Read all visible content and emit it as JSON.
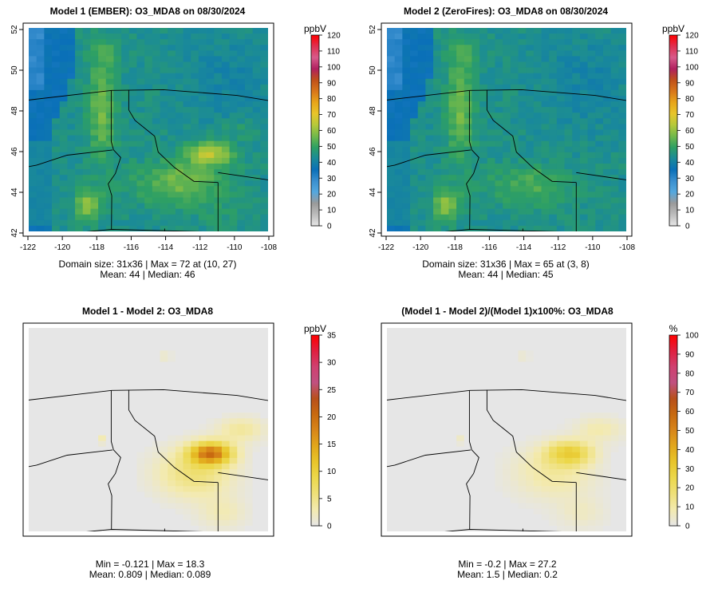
{
  "chart_data": [
    {
      "type": "heatmap",
      "title": "Model 1 (EMBER): O3_MDA8 on 08/30/2024",
      "x_ticks": [
        -122,
        -120,
        -118,
        -116,
        -114,
        -112,
        -110,
        -108
      ],
      "y_ticks": [
        42,
        44,
        46,
        48,
        50,
        52
      ],
      "xlim": [
        -122,
        -108
      ],
      "ylim": [
        42,
        52
      ],
      "grid_size": "31x36",
      "colorbar": {
        "unit": "ppbV",
        "ticks": [
          0,
          10,
          20,
          30,
          40,
          50,
          60,
          70,
          80,
          90,
          100,
          110,
          120
        ],
        "range": [
          0,
          120
        ]
      },
      "stats": [
        "Domain size: 31x36 | Max = 72 at (10, 27)",
        "Mean: 44 |  Median: 46"
      ],
      "max": 72,
      "mean": 44,
      "median": 46
    },
    {
      "type": "heatmap",
      "title": "Model 2 (ZeroFires): O3_MDA8 on 08/30/2024",
      "x_ticks": [
        -122,
        -120,
        -118,
        -116,
        -114,
        -112,
        -110,
        -108
      ],
      "y_ticks": [
        42,
        44,
        46,
        48,
        50,
        52
      ],
      "xlim": [
        -122,
        -108
      ],
      "ylim": [
        42,
        52
      ],
      "grid_size": "31x36",
      "colorbar": {
        "unit": "ppbV",
        "ticks": [
          0,
          10,
          20,
          30,
          40,
          50,
          60,
          70,
          80,
          90,
          100,
          110,
          120
        ],
        "range": [
          0,
          120
        ]
      },
      "stats": [
        "Domain size: 31x36 | Max = 65 at (3, 8)",
        "Mean: 44 |  Median: 45"
      ],
      "max": 65,
      "mean": 44,
      "median": 45
    },
    {
      "type": "heatmap",
      "title": "Model 1 - Model 2: O3_MDA8",
      "colorbar": {
        "unit": "ppbV",
        "ticks": [
          0,
          5,
          10,
          15,
          20,
          25,
          30,
          35
        ],
        "range": [
          0,
          35
        ]
      },
      "stats": [
        "Min = -0.121 | Max = 18.3",
        "Mean: 0.809 |  Median: 0.089"
      ],
      "min": -0.121,
      "max": 18.3,
      "mean": 0.809,
      "median": 0.089
    },
    {
      "type": "heatmap",
      "title": "(Model 1 - Model 2)/(Model 1)x100%: O3_MDA8",
      "colorbar": {
        "unit": "%",
        "ticks": [
          0,
          10,
          20,
          30,
          40,
          50,
          60,
          70,
          80,
          90,
          100
        ],
        "range": [
          0,
          100
        ]
      },
      "stats": [
        "Min = -0.2 | Max = 27.2",
        "Mean: 1.5 |  Median: 0.2"
      ],
      "min": -0.2,
      "max": 27.2,
      "mean": 1.5,
      "median": 0.2
    }
  ],
  "colors": {
    "abs_scale": [
      "#e6e6e6",
      "#bdbdbd",
      "#9a9a9a",
      "#55a8de",
      "#3a8fcf",
      "#0a70b8",
      "#1a8a99",
      "#2ea063",
      "#73b94a",
      "#b6c93a",
      "#e8c52a",
      "#e8a51a",
      "#d8761a",
      "#c0501a",
      "#b02060",
      "#d85a8a",
      "#e03050",
      "#ff0000"
    ],
    "diff_scale": [
      "#e6e6e6",
      "#f3eab0",
      "#efe07a",
      "#ecd84c",
      "#e8c52a",
      "#e2a81c",
      "#d8861a",
      "#c86a10",
      "#b8501a",
      "#c05080",
      "#d04070",
      "#e02040",
      "#ff0000"
    ]
  }
}
